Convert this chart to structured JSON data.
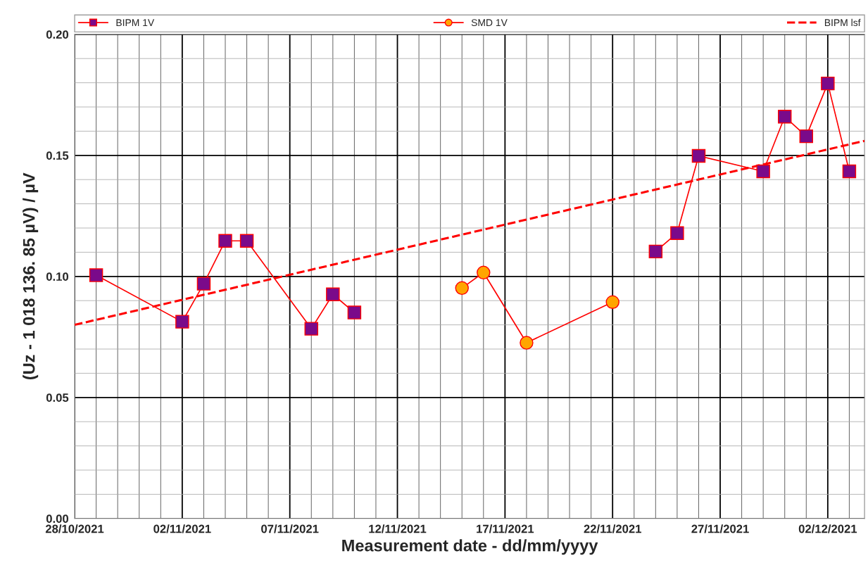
{
  "chart_data": {
    "type": "line",
    "xlabel": "Measurement date - dd/mm/yyyy",
    "ylabel": "(Uz - 1 018 136. 85 µV) / µV",
    "series": [
      {
        "name": "BIPM 1V",
        "marker": "square",
        "color": "#ff0000",
        "colors": [
          "#7a0a8a",
          "#7a0a8a",
          "#7a0a8a",
          "#7a0a8a",
          "#7a0a8a",
          "#7a0a8a",
          "#7a0a8a",
          "#7a0a8a",
          "#7a0a8a",
          "#7a0a8a",
          "#7a0a8a",
          "#7a0a8a",
          "#7a0a8a",
          "#7a0a8a",
          "#7a0a8a",
          "#7a0a8a",
          "#7a0a8a"
        ],
        "x": [
          "2021-10-29",
          "2021-11-02",
          "2021-11-03",
          "2021-11-04",
          "2021-11-05",
          "2021-11-08",
          "2021-11-09",
          "2021-11-10",
          "2021-11-17",
          "2021-11-24",
          "2021-11-25",
          "2021-11-26",
          "2021-11-29",
          "2021-11-30",
          "2021-12-01",
          "2021-12-02",
          "2021-12-03"
        ],
        "values": [
          0.1005,
          0.0813,
          0.097,
          0.1147,
          0.1147,
          0.0784,
          0.0926,
          0.0851,
          null,
          0.1103,
          0.1179,
          0.1498,
          0.1434,
          0.166,
          0.1579,
          0.1797,
          0.1434
        ]
      },
      {
        "name": "SMD 1V",
        "marker": "circle",
        "color": "#ff0000",
        "colors": [
          "#ffa500",
          "#ffa500",
          "#ffa500",
          "#ffa500"
        ],
        "x": [
          "2021-11-15",
          "2021-11-16",
          "2021-11-18",
          "2021-11-22"
        ],
        "values": [
          0.0952,
          0.1016,
          0.0726,
          0.0894
        ]
      },
      {
        "name": "BIPM lsf",
        "marker": "none",
        "line_style": "dashed",
        "color": "#ff0000",
        "x": [
          "2021-10-28",
          "2021-12-03T17:00"
        ],
        "values": [
          0.08,
          0.156
        ]
      }
    ],
    "xlim": [
      "2021-10-28",
      "2021-12-03T17:00"
    ],
    "xticks": [
      {
        "value": "2021-10-28",
        "label": "28/10/2021"
      },
      {
        "value": "2021-10-29",
        "label": null
      },
      {
        "value": "2021-10-30",
        "label": null
      },
      {
        "value": "2021-10-31",
        "label": null
      },
      {
        "value": "2021-11-01",
        "label": null
      },
      {
        "value": "2021-11-02",
        "label": "02/11/2021"
      },
      {
        "value": "2021-11-03",
        "label": null
      },
      {
        "value": "2021-11-04",
        "label": null
      },
      {
        "value": "2021-11-05",
        "label": null
      },
      {
        "value": "2021-11-06",
        "label": null
      },
      {
        "value": "2021-11-07",
        "label": "07/11/2021"
      },
      {
        "value": "2021-11-08",
        "label": null
      },
      {
        "value": "2021-11-09",
        "label": null
      },
      {
        "value": "2021-11-10",
        "label": null
      },
      {
        "value": "2021-11-11",
        "label": null
      },
      {
        "value": "2021-11-12",
        "label": "12/11/2021"
      },
      {
        "value": "2021-11-13",
        "label": null
      },
      {
        "value": "2021-11-14",
        "label": null
      },
      {
        "value": "2021-11-15",
        "label": null
      },
      {
        "value": "2021-11-16",
        "label": null
      },
      {
        "value": "2021-11-17",
        "label": "17/11/2021"
      },
      {
        "value": "2021-11-18",
        "label": null
      },
      {
        "value": "2021-11-19",
        "label": null
      },
      {
        "value": "2021-11-20",
        "label": null
      },
      {
        "value": "2021-11-21",
        "label": null
      },
      {
        "value": "2021-11-22",
        "label": "22/11/2021"
      },
      {
        "value": "2021-11-23",
        "label": null
      },
      {
        "value": "2021-11-24",
        "label": null
      },
      {
        "value": "2021-11-25",
        "label": null
      },
      {
        "value": "2021-11-26",
        "label": null
      },
      {
        "value": "2021-11-27",
        "label": "27/11/2021"
      },
      {
        "value": "2021-11-28",
        "label": null
      },
      {
        "value": "2021-11-29",
        "label": null
      },
      {
        "value": "2021-11-30",
        "label": null
      },
      {
        "value": "2021-12-01",
        "label": null
      },
      {
        "value": "2021-12-02",
        "label": "02/12/2021"
      },
      {
        "value": "2021-12-03",
        "label": null
      }
    ],
    "ylim": [
      0,
      0.2
    ],
    "yticks": [
      {
        "value": 0,
        "label": "0.00"
      },
      {
        "value": 0.01,
        "label": null
      },
      {
        "value": 0.02,
        "label": null
      },
      {
        "value": 0.03,
        "label": null
      },
      {
        "value": 0.04,
        "label": null
      },
      {
        "value": 0.05,
        "label": "0.05"
      },
      {
        "value": 0.06,
        "label": null
      },
      {
        "value": 0.07,
        "label": null
      },
      {
        "value": 0.08,
        "label": null
      },
      {
        "value": 0.09,
        "label": null
      },
      {
        "value": 0.1,
        "label": "0.10"
      },
      {
        "value": 0.11,
        "label": null
      },
      {
        "value": 0.12,
        "label": null
      },
      {
        "value": 0.13,
        "label": null
      },
      {
        "value": 0.14,
        "label": null
      },
      {
        "value": 0.15,
        "label": "0.15"
      },
      {
        "value": 0.16,
        "label": null
      },
      {
        "value": 0.17,
        "label": null
      },
      {
        "value": 0.18,
        "label": null
      },
      {
        "value": 0.19,
        "label": null
      },
      {
        "value": 0.2,
        "label": "0.20"
      }
    ],
    "grid": true,
    "legend": "top"
  }
}
